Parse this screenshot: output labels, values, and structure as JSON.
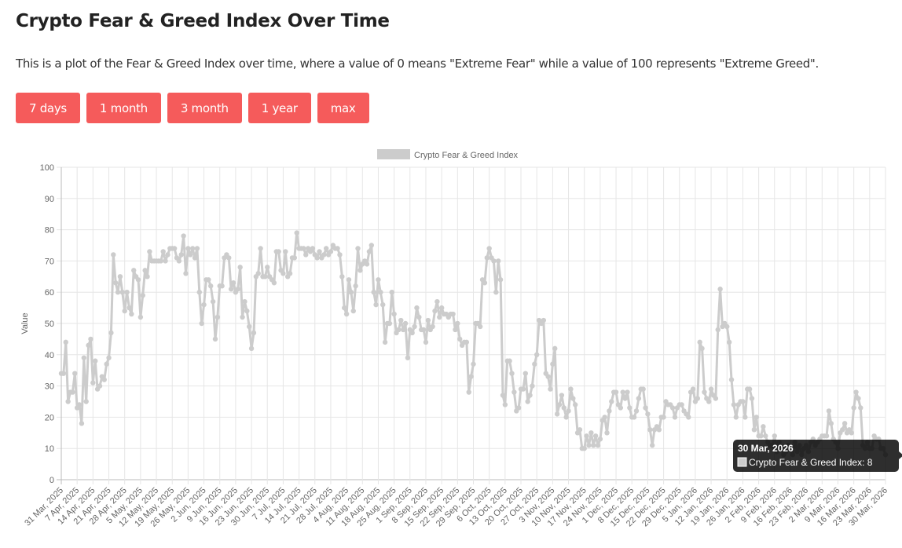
{
  "page": {
    "title": "Crypto Fear & Greed Index Over Time",
    "description": "This is a plot of the Fear & Greed Index over time, where a value of 0 means \"Extreme Fear\" while a value of 100 represents \"Extreme Greed\"."
  },
  "range_buttons": [
    "7 days",
    "1 month",
    "3 month",
    "1 year",
    "max"
  ],
  "colors": {
    "button": "#f55b5b",
    "series": "#cccccc",
    "grid": "#e6e6e6"
  },
  "tooltip": {
    "title": "30 Mar, 2026",
    "label": "Crypto Fear & Greed Index: 8"
  },
  "chart_data": {
    "type": "line",
    "title": "",
    "legend": [
      "Crypto Fear & Greed Index"
    ],
    "legend_position": "top",
    "xlabel": "",
    "ylabel": "Value",
    "ylim": [
      0,
      100
    ],
    "yticks": [
      0,
      10,
      20,
      30,
      40,
      50,
      60,
      70,
      80,
      90,
      100
    ],
    "grid": true,
    "x_start": "31 Mar, 2025",
    "x_end": "30 Mar, 2026",
    "x_step_days": 1,
    "xtick_labels": [
      "31 Mar, 2025",
      "7 Apr, 2025",
      "14 Apr, 2025",
      "21 Apr, 2025",
      "28 Apr, 2025",
      "5 May, 2025",
      "12 May, 2025",
      "19 May, 2025",
      "26 May, 2025",
      "2 Jun, 2025",
      "9 Jun, 2025",
      "16 Jun, 2025",
      "23 Jun, 2025",
      "30 Jun, 2025",
      "7 Jul, 2025",
      "14 Jul, 2025",
      "21 Jul, 2025",
      "28 Jul, 2025",
      "4 Aug, 2025",
      "11 Aug, 2025",
      "18 Aug, 2025",
      "25 Aug, 2025",
      "1 Sep, 2025",
      "8 Sep, 2025",
      "15 Sep, 2025",
      "22 Sep, 2025",
      "29 Sep, 2025",
      "6 Oct, 2025",
      "13 Oct, 2025",
      "20 Oct, 2025",
      "27 Oct, 2025",
      "3 Nov, 2025",
      "10 Nov, 2025",
      "17 Nov, 2025",
      "24 Nov, 2025",
      "1 Dec, 2025",
      "8 Dec, 2025",
      "15 Dec, 2025",
      "22 Dec, 2025",
      "29 Dec, 2025",
      "5 Jan, 2026",
      "12 Jan, 2026",
      "19 Jan, 2026",
      "26 Jan, 2026",
      "2 Feb, 2026",
      "9 Feb, 2026",
      "16 Feb, 2026",
      "23 Feb, 2026",
      "2 Mar, 2026",
      "9 Mar, 2026",
      "16 Mar, 2026",
      "23 Mar, 2026",
      "30 Mar, 2026"
    ],
    "series": [
      {
        "name": "Crypto Fear & Greed Index",
        "values": [
          34,
          34,
          44,
          25,
          28,
          28,
          34,
          23,
          24,
          18,
          39,
          25,
          43,
          45,
          31,
          38,
          29,
          30,
          33,
          32,
          37,
          39,
          47,
          72,
          63,
          60,
          65,
          60,
          54,
          60,
          55,
          53,
          67,
          65,
          64,
          52,
          59,
          67,
          65,
          73,
          70,
          70,
          70,
          70,
          70,
          73,
          70,
          72,
          74,
          74,
          74,
          71,
          70,
          72,
          78,
          66,
          74,
          72,
          74,
          71,
          74,
          60,
          50,
          56,
          64,
          64,
          62,
          57,
          45,
          52,
          62,
          62,
          71,
          72,
          71,
          61,
          63,
          60,
          61,
          68,
          52,
          57,
          54,
          49,
          42,
          47,
          65,
          66,
          74,
          65,
          65,
          68,
          65,
          64,
          63,
          73,
          73,
          67,
          66,
          73,
          65,
          66,
          71,
          71,
          79,
          74,
          74,
          74,
          72,
          74,
          73,
          74,
          72,
          71,
          73,
          71,
          72,
          74,
          72,
          73,
          75,
          74,
          74,
          72,
          65,
          55,
          53,
          64,
          60,
          54,
          62,
          74,
          67,
          69,
          70,
          69,
          73,
          75,
          60,
          56,
          64,
          60,
          56,
          44,
          50,
          50,
          60,
          53,
          47,
          48,
          51,
          48,
          50,
          39,
          48,
          47,
          49,
          55,
          52,
          48,
          48,
          44,
          51,
          48,
          49,
          54,
          57,
          52,
          55,
          53,
          53,
          52,
          53,
          53,
          48,
          50,
          45,
          43,
          44,
          44,
          28,
          33,
          37,
          50,
          50,
          49,
          64,
          63,
          71,
          74,
          71,
          70,
          60,
          70,
          64,
          27,
          24,
          38,
          38,
          34,
          28,
          22,
          23,
          29,
          29,
          34,
          25,
          27,
          30,
          37,
          40,
          51,
          50,
          51,
          34,
          33,
          29,
          37,
          42,
          21,
          24,
          27,
          23,
          20,
          22,
          29,
          26,
          24,
          15,
          16,
          10,
          10,
          14,
          11,
          15,
          11,
          14,
          11,
          13,
          19,
          20,
          15,
          22,
          25,
          28,
          28,
          24,
          23,
          28,
          26,
          28,
          23,
          20,
          20,
          22,
          26,
          29,
          29,
          23,
          21,
          16,
          11,
          16,
          17,
          16,
          20,
          20,
          25,
          24,
          24,
          23,
          20,
          23,
          24,
          24,
          22,
          21,
          20,
          28,
          29,
          25,
          26,
          44,
          42,
          28,
          26,
          25,
          29,
          27,
          26,
          48,
          61,
          49,
          50,
          49,
          44,
          32,
          24,
          20,
          24,
          25,
          25,
          20,
          29,
          29,
          26,
          16,
          20,
          14,
          14,
          17,
          14,
          12,
          11,
          11,
          14,
          9,
          12,
          10,
          8,
          9,
          11,
          10,
          8,
          12,
          9,
          11,
          8,
          10,
          11,
          9,
          12,
          13,
          11,
          12,
          13,
          14,
          14,
          14,
          22,
          18,
          13,
          12,
          10,
          15,
          16,
          18,
          15,
          16,
          15,
          23,
          28,
          26,
          23,
          11,
          10,
          12,
          10,
          10,
          14,
          13,
          13,
          10,
          10,
          8
        ]
      }
    ]
  }
}
